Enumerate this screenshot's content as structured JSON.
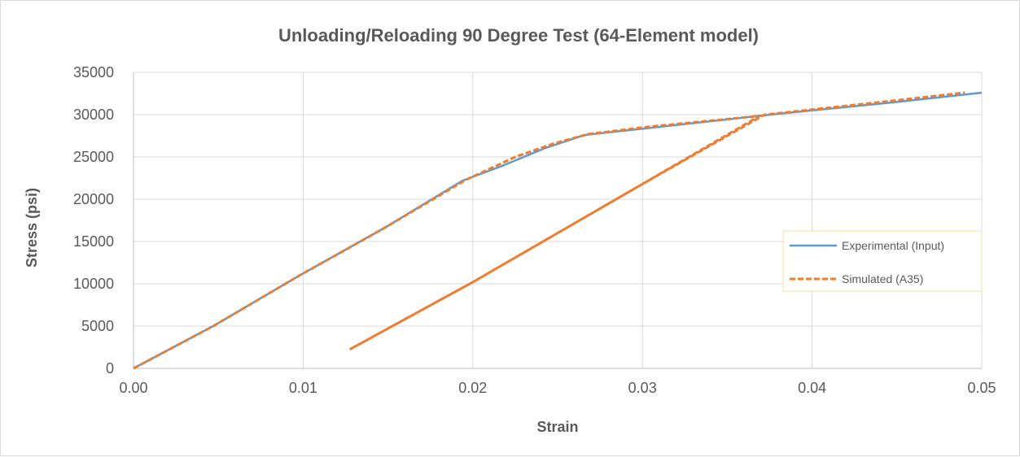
{
  "chart_data": {
    "type": "line",
    "title": "Unloading/Reloading 90 Degree Test (64-Element model)",
    "xlabel": "Strain",
    "ylabel": "Stress (psi)",
    "xlim": [
      0,
      0.05
    ],
    "ylim": [
      0,
      35000
    ],
    "x_ticks": [
      "0.00",
      "0.01",
      "0.02",
      "0.03",
      "0.04",
      "0.05"
    ],
    "y_ticks": [
      "0",
      "5000",
      "10000",
      "15000",
      "20000",
      "25000",
      "30000",
      "35000"
    ],
    "grid": true,
    "legend_position": "right",
    "series": [
      {
        "name": "Experimental (Input)",
        "color": "#5b9bd5",
        "style": "solid",
        "points": [
          [
            0,
            0
          ],
          [
            0.0047,
            5000
          ],
          [
            0.0098,
            11000
          ],
          [
            0.0147,
            16500
          ],
          [
            0.0194,
            22200
          ],
          [
            0.0218,
            24000
          ],
          [
            0.0242,
            26000
          ],
          [
            0.0266,
            27600
          ],
          [
            0.0303,
            28400
          ],
          [
            0.0371,
            29900
          ],
          [
            0.04,
            30500
          ],
          [
            0.045,
            31500
          ],
          [
            0.05,
            32600
          ]
        ]
      },
      {
        "name": "Simulated (A35)",
        "color": "#ed7d31",
        "style": "dashed",
        "points": [
          [
            0,
            0
          ],
          [
            0.0047,
            5000
          ],
          [
            0.0098,
            11000
          ],
          [
            0.0147,
            16500
          ],
          [
            0.0196,
            22300
          ],
          [
            0.0225,
            25000
          ],
          [
            0.0248,
            26600
          ],
          [
            0.0268,
            27700
          ],
          [
            0.0305,
            28600
          ],
          [
            0.0369,
            29850
          ],
          [
            0.03,
            21800
          ],
          [
            0.02,
            10200
          ],
          [
            0.0128,
            2300
          ],
          [
            0.02,
            10200
          ],
          [
            0.03,
            21800
          ],
          [
            0.0372,
            30000
          ],
          [
            0.04,
            30600
          ],
          [
            0.045,
            31700
          ],
          [
            0.049,
            32600
          ]
        ]
      }
    ]
  }
}
